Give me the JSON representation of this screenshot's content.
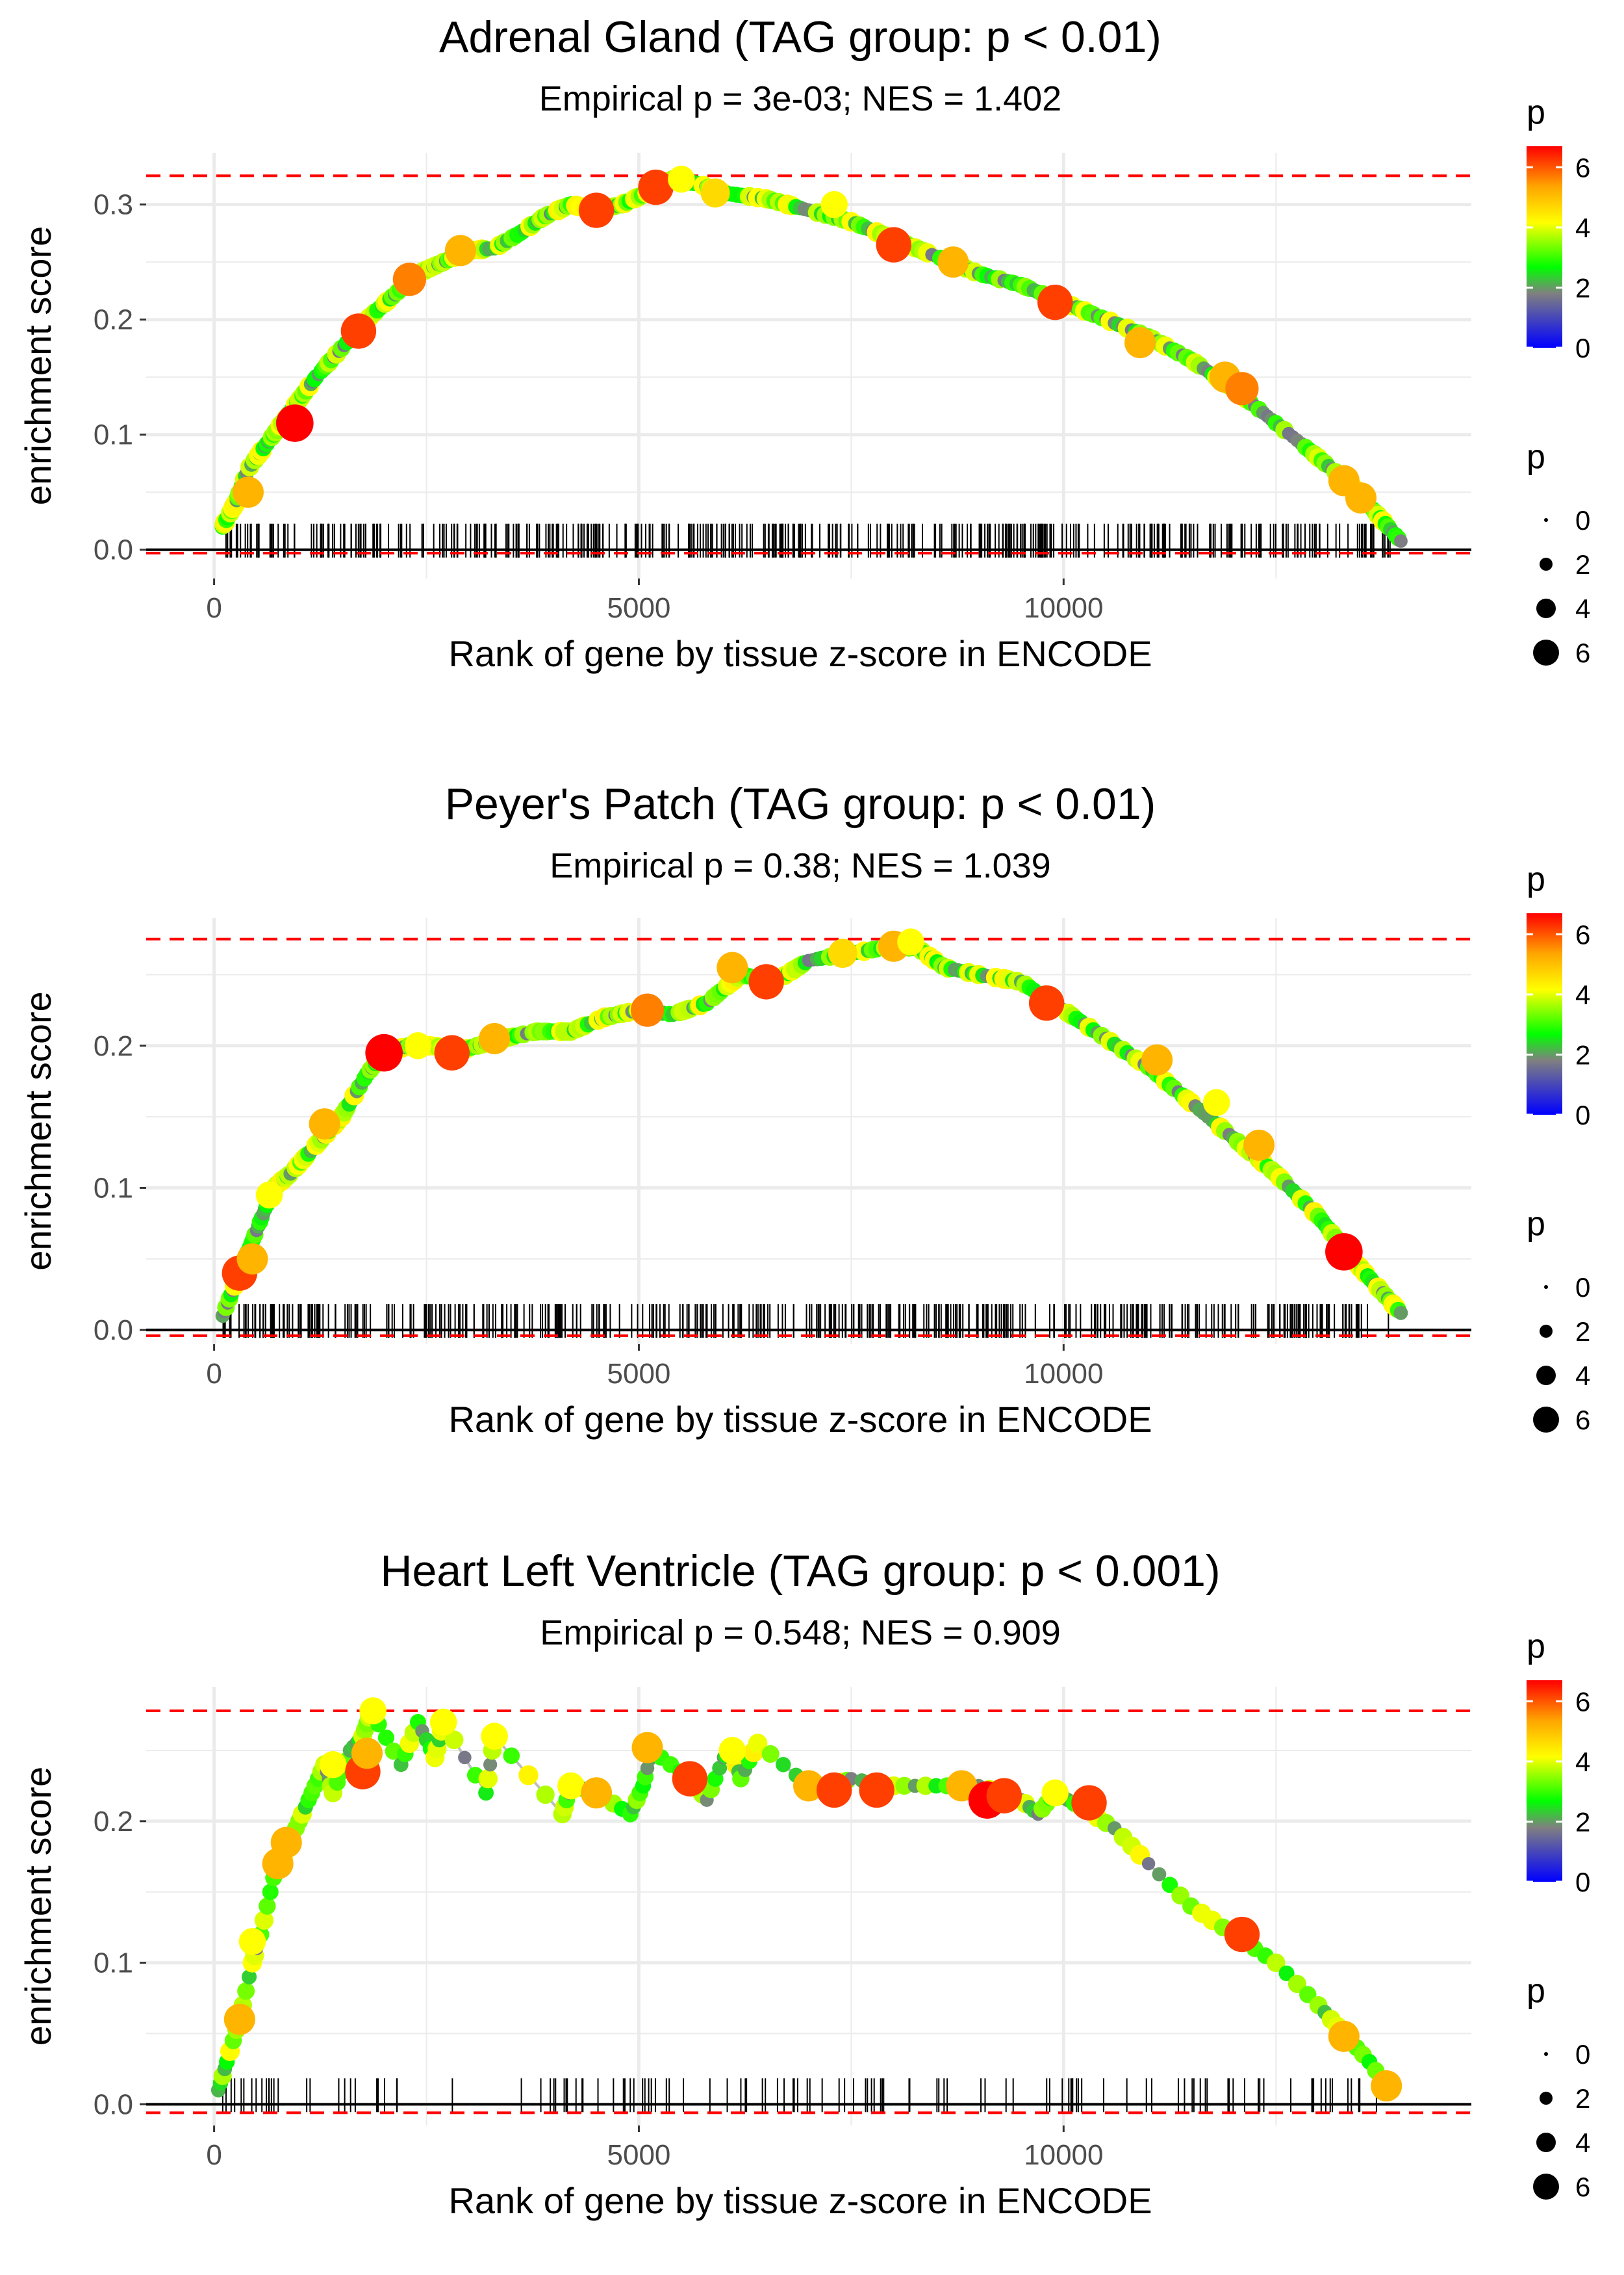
{
  "chart_data": [
    {
      "type": "line",
      "title": "Adrenal Gland (TAG group: p < 0.01)",
      "subtitle": "Empirical p = 3e-03; NES = 1.402",
      "xlabel": "Rank of gene by tissue z-score in ENCODE",
      "ylabel": "enrichment score",
      "xlim": [
        -800,
        14800
      ],
      "ylim": [
        -0.025,
        0.345
      ],
      "x_ticks": [
        0,
        5000,
        10000
      ],
      "x_tick_labels": [
        "0",
        "5000",
        "10000"
      ],
      "y_ticks": [
        0.0,
        0.1,
        0.2,
        0.3
      ],
      "y_tick_labels": [
        "0.0",
        "0.1",
        "0.2",
        "0.3"
      ],
      "max_es": 0.325,
      "min_es": -0.003,
      "grid": true,
      "curve_x": [
        100,
        250,
        400,
        600,
        800,
        1000,
        1200,
        1500,
        1800,
        2100,
        2400,
        2700,
        3000,
        3300,
        3600,
        3900,
        4200,
        4500,
        4800,
        5100,
        5400,
        5700,
        6000,
        6500,
        7000,
        7500,
        8000,
        8500,
        9000,
        9500,
        10000,
        10500,
        11000,
        11500,
        12000,
        12500,
        13000,
        13400,
        13700,
        14000
      ],
      "curve_y": [
        0.02,
        0.04,
        0.07,
        0.09,
        0.11,
        0.13,
        0.15,
        0.175,
        0.2,
        0.22,
        0.24,
        0.25,
        0.26,
        0.262,
        0.275,
        0.29,
        0.3,
        0.295,
        0.3,
        0.31,
        0.322,
        0.318,
        0.31,
        0.305,
        0.295,
        0.285,
        0.27,
        0.255,
        0.24,
        0.23,
        0.215,
        0.2,
        0.185,
        0.165,
        0.14,
        0.11,
        0.08,
        0.055,
        0.03,
        0.005
      ],
      "highlight_points": [
        {
          "x": 400,
          "y": 0.05,
          "p": 5
        },
        {
          "x": 950,
          "y": 0.11,
          "p": 6.5
        },
        {
          "x": 1700,
          "y": 0.19,
          "p": 6
        },
        {
          "x": 2300,
          "y": 0.235,
          "p": 5.5
        },
        {
          "x": 2900,
          "y": 0.26,
          "p": 5
        },
        {
          "x": 4500,
          "y": 0.295,
          "p": 6
        },
        {
          "x": 5200,
          "y": 0.315,
          "p": 6
        },
        {
          "x": 5500,
          "y": 0.322,
          "p": 4
        },
        {
          "x": 5900,
          "y": 0.31,
          "p": 4.5
        },
        {
          "x": 7300,
          "y": 0.3,
          "p": 4
        },
        {
          "x": 8000,
          "y": 0.265,
          "p": 6
        },
        {
          "x": 8700,
          "y": 0.25,
          "p": 5
        },
        {
          "x": 9900,
          "y": 0.215,
          "p": 6
        },
        {
          "x": 10900,
          "y": 0.18,
          "p": 5
        },
        {
          "x": 11900,
          "y": 0.15,
          "p": 5
        },
        {
          "x": 12100,
          "y": 0.14,
          "p": 5.5
        },
        {
          "x": 13300,
          "y": 0.06,
          "p": 5
        },
        {
          "x": 13500,
          "y": 0.045,
          "p": 5
        }
      ],
      "rug_density": "dense",
      "legend": {
        "color_title": "p",
        "color_ticks": [
          "0",
          "2",
          "4",
          "6"
        ],
        "size_title": "p",
        "size_labels": [
          "0",
          "2",
          "4",
          "6"
        ],
        "position": "right"
      }
    },
    {
      "type": "line",
      "title": "Peyer's Patch (TAG group: p < 0.01)",
      "subtitle": "Empirical p = 0.38; NES = 1.039",
      "xlabel": "Rank of gene by tissue z-score in ENCODE",
      "ylabel": "enrichment score",
      "xlim": [
        -800,
        14800
      ],
      "ylim": [
        -0.01,
        0.29
      ],
      "x_ticks": [
        0,
        5000,
        10000
      ],
      "x_tick_labels": [
        "0",
        "5000",
        "10000"
      ],
      "y_ticks": [
        0.0,
        0.1,
        0.2
      ],
      "y_tick_labels": [
        "0.0",
        "0.1",
        "0.2"
      ],
      "max_es": 0.275,
      "min_es": -0.004,
      "grid": true,
      "curve_x": [
        100,
        300,
        500,
        700,
        900,
        1200,
        1500,
        1800,
        2000,
        2300,
        2600,
        2800,
        3100,
        3400,
        3800,
        4200,
        4600,
        5000,
        5400,
        5800,
        6200,
        6600,
        7000,
        7500,
        8000,
        8300,
        8600,
        9000,
        9500,
        10000,
        10500,
        11000,
        11500,
        12000,
        12500,
        13000,
        13400,
        13700,
        14000
      ],
      "curve_y": [
        0.01,
        0.04,
        0.07,
        0.1,
        0.11,
        0.13,
        0.15,
        0.18,
        0.195,
        0.2,
        0.2,
        0.195,
        0.2,
        0.205,
        0.21,
        0.21,
        0.22,
        0.225,
        0.222,
        0.23,
        0.25,
        0.245,
        0.26,
        0.265,
        0.27,
        0.268,
        0.255,
        0.25,
        0.245,
        0.225,
        0.205,
        0.185,
        0.16,
        0.135,
        0.11,
        0.08,
        0.05,
        0.03,
        0.01
      ],
      "highlight_points": [
        {
          "x": 300,
          "y": 0.04,
          "p": 6
        },
        {
          "x": 450,
          "y": 0.05,
          "p": 5
        },
        {
          "x": 650,
          "y": 0.095,
          "p": 4
        },
        {
          "x": 1300,
          "y": 0.145,
          "p": 5
        },
        {
          "x": 2000,
          "y": 0.195,
          "p": 6.5
        },
        {
          "x": 2400,
          "y": 0.2,
          "p": 4
        },
        {
          "x": 2800,
          "y": 0.195,
          "p": 6
        },
        {
          "x": 3300,
          "y": 0.205,
          "p": 5
        },
        {
          "x": 5100,
          "y": 0.225,
          "p": 5.5
        },
        {
          "x": 6100,
          "y": 0.255,
          "p": 5
        },
        {
          "x": 6500,
          "y": 0.245,
          "p": 6
        },
        {
          "x": 7400,
          "y": 0.265,
          "p": 4.5
        },
        {
          "x": 8000,
          "y": 0.27,
          "p": 5
        },
        {
          "x": 8200,
          "y": 0.273,
          "p": 4
        },
        {
          "x": 9800,
          "y": 0.23,
          "p": 6
        },
        {
          "x": 11100,
          "y": 0.19,
          "p": 5
        },
        {
          "x": 11800,
          "y": 0.16,
          "p": 4
        },
        {
          "x": 12300,
          "y": 0.13,
          "p": 5
        },
        {
          "x": 13300,
          "y": 0.055,
          "p": 6.5
        }
      ],
      "rug_density": "dense",
      "legend": {
        "color_title": "p",
        "color_ticks": [
          "0",
          "2",
          "4",
          "6"
        ],
        "size_title": "p",
        "size_labels": [
          "0",
          "2",
          "4",
          "6"
        ],
        "position": "right"
      }
    },
    {
      "type": "line",
      "title": "Heart Left Ventricle (TAG group: p < 0.001)",
      "subtitle": "Empirical p = 0.548; NES = 0.909",
      "xlabel": "Rank of gene by tissue z-score in ENCODE",
      "ylabel": "enrichment score",
      "xlim": [
        -800,
        14800
      ],
      "ylim": [
        -0.015,
        0.295
      ],
      "x_ticks": [
        0,
        5000,
        10000
      ],
      "x_tick_labels": [
        "0",
        "5000",
        "10000"
      ],
      "y_ticks": [
        0.0,
        0.1,
        0.2
      ],
      "y_tick_labels": [
        "0.0",
        "0.1",
        "0.2"
      ],
      "max_es": 0.278,
      "min_es": -0.006,
      "grid": true,
      "curve_x": [
        50,
        150,
        300,
        450,
        550,
        700,
        850,
        1000,
        1150,
        1300,
        1400,
        1600,
        1750,
        1850,
        2200,
        2400,
        2600,
        2700,
        3200,
        3300,
        4100,
        4200,
        4500,
        4900,
        5050,
        5150,
        5600,
        5800,
        6000,
        6100,
        6200,
        6400,
        7000,
        7300,
        7500,
        8000,
        8500,
        9000,
        9500,
        9700,
        9900,
        10200,
        10600,
        11000,
        11500,
        12000,
        12500,
        13000,
        13300,
        13600,
        13900
      ],
      "curve_y": [
        0.01,
        0.03,
        0.06,
        0.1,
        0.12,
        0.16,
        0.18,
        0.2,
        0.22,
        0.24,
        0.22,
        0.25,
        0.26,
        0.278,
        0.24,
        0.27,
        0.245,
        0.27,
        0.22,
        0.26,
        0.205,
        0.225,
        0.22,
        0.205,
        0.225,
        0.25,
        0.23,
        0.215,
        0.245,
        0.25,
        0.23,
        0.255,
        0.225,
        0.225,
        0.23,
        0.225,
        0.225,
        0.225,
        0.215,
        0.205,
        0.22,
        0.21,
        0.195,
        0.17,
        0.14,
        0.12,
        0.1,
        0.07,
        0.05,
        0.03,
        0.005
      ],
      "highlight_points": [
        {
          "x": 300,
          "y": 0.06,
          "p": 5
        },
        {
          "x": 450,
          "y": 0.115,
          "p": 4
        },
        {
          "x": 750,
          "y": 0.17,
          "p": 5
        },
        {
          "x": 850,
          "y": 0.185,
          "p": 5
        },
        {
          "x": 1400,
          "y": 0.24,
          "p": 4
        },
        {
          "x": 1750,
          "y": 0.235,
          "p": 6
        },
        {
          "x": 1800,
          "y": 0.248,
          "p": 5
        },
        {
          "x": 1870,
          "y": 0.278,
          "p": 4
        },
        {
          "x": 2700,
          "y": 0.27,
          "p": 4
        },
        {
          "x": 3300,
          "y": 0.26,
          "p": 4
        },
        {
          "x": 4200,
          "y": 0.225,
          "p": 4
        },
        {
          "x": 4500,
          "y": 0.22,
          "p": 5
        },
        {
          "x": 5100,
          "y": 0.252,
          "p": 5
        },
        {
          "x": 5600,
          "y": 0.23,
          "p": 6
        },
        {
          "x": 6100,
          "y": 0.25,
          "p": 4
        },
        {
          "x": 7000,
          "y": 0.225,
          "p": 5
        },
        {
          "x": 7300,
          "y": 0.222,
          "p": 6
        },
        {
          "x": 7800,
          "y": 0.222,
          "p": 6
        },
        {
          "x": 8800,
          "y": 0.225,
          "p": 5
        },
        {
          "x": 9100,
          "y": 0.215,
          "p": 6.5
        },
        {
          "x": 9300,
          "y": 0.218,
          "p": 6
        },
        {
          "x": 9900,
          "y": 0.22,
          "p": 4
        },
        {
          "x": 10300,
          "y": 0.213,
          "p": 6
        },
        {
          "x": 12100,
          "y": 0.12,
          "p": 6
        },
        {
          "x": 13300,
          "y": 0.048,
          "p": 5
        },
        {
          "x": 13800,
          "y": 0.013,
          "p": 5
        }
      ],
      "rug_density": "sparse",
      "legend": {
        "color_title": "p",
        "color_ticks": [
          "0",
          "2",
          "4",
          "6"
        ],
        "size_title": "p",
        "size_labels": [
          "0",
          "2",
          "4",
          "6"
        ],
        "position": "right"
      }
    }
  ],
  "colors": {
    "curve_line": "#bdbdbd",
    "threshold_line": "#ff0000",
    "zero_line": "#000000",
    "grid": "#ebebeb",
    "gradient": [
      "#0000ff",
      "#808080",
      "#00ff00",
      "#ffff00",
      "#ffa500",
      "#ff0000"
    ]
  }
}
